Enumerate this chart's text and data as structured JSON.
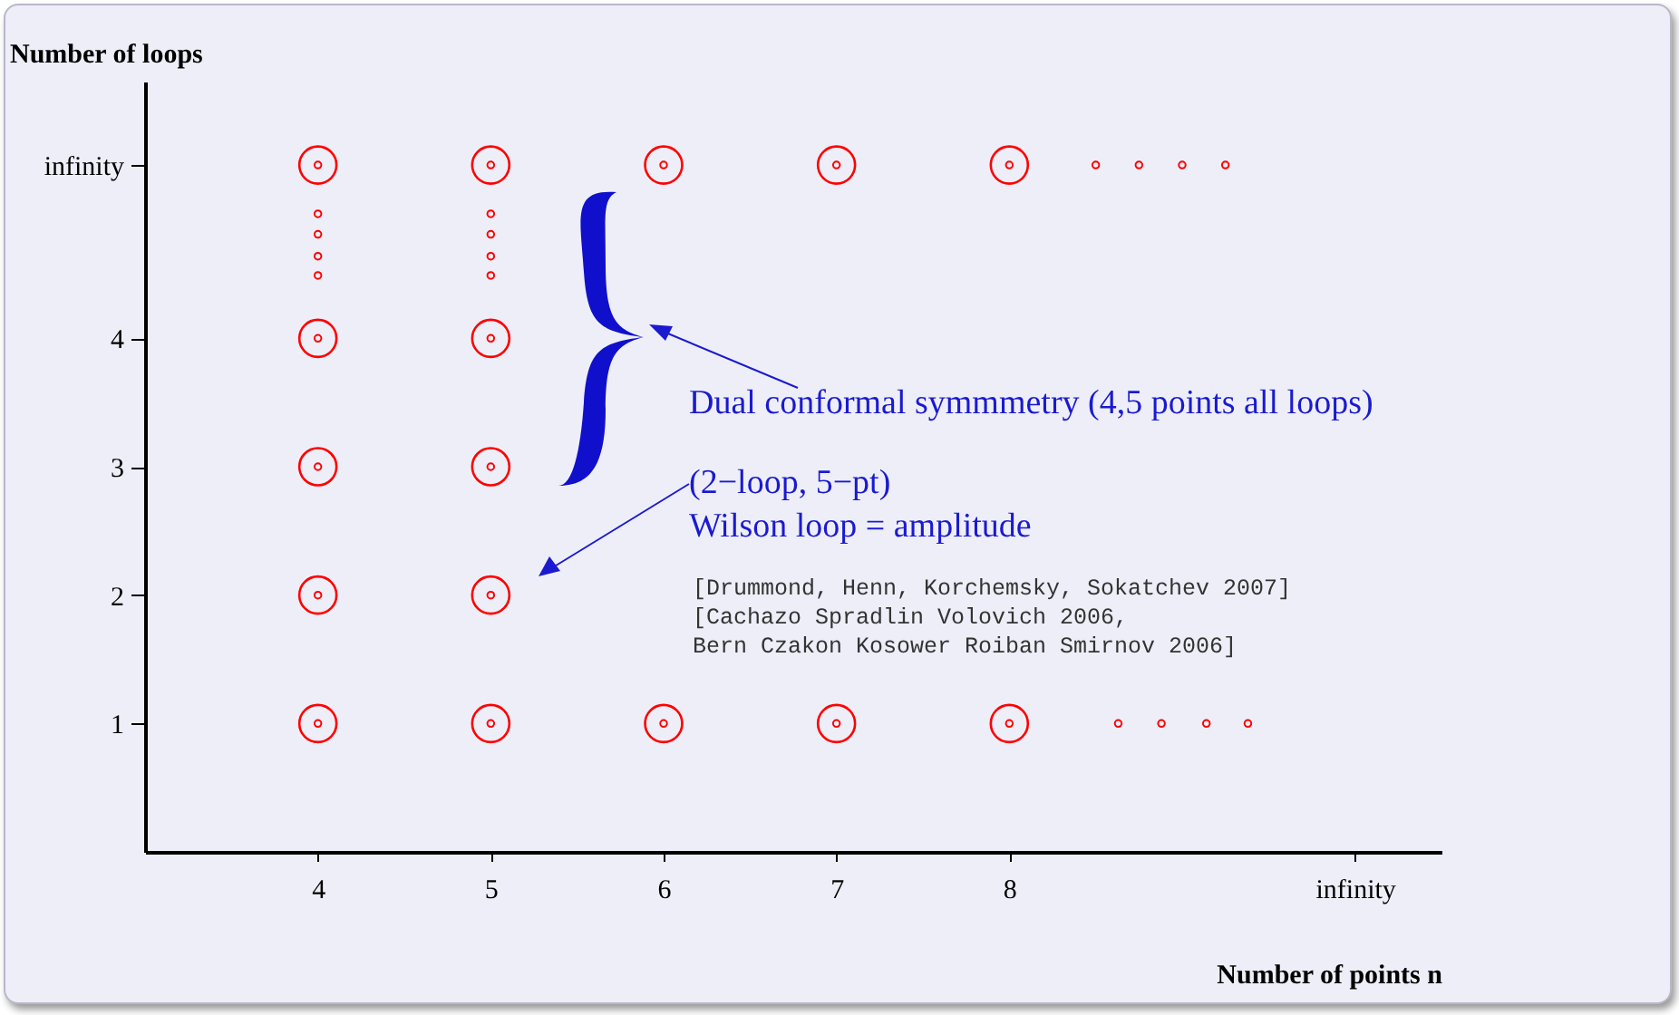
{
  "chart_data": {
    "type": "scatter",
    "xlabel": "Number of points n",
    "ylabel": "Number of loops",
    "marker": "circle",
    "grid": false,
    "xlim": [
      3,
      10.5
    ],
    "xticks": [
      4,
      5,
      6,
      7,
      8,
      {
        "value": 10,
        "label": "infinity"
      }
    ],
    "ylim": [
      0,
      6
    ],
    "yticks": [
      1,
      2,
      3,
      4,
      {
        "value": 5.35,
        "label": "infinity"
      }
    ],
    "series": [
      {
        "color": "#ff0000",
        "x": [
          4,
          4,
          4,
          4,
          4,
          5,
          5,
          5,
          5,
          5,
          6,
          6,
          7,
          7,
          8,
          8
        ],
        "values": [
          1,
          2,
          3,
          4,
          5.35,
          1,
          2,
          3,
          4,
          5.35,
          1,
          5.35,
          1,
          5.35,
          1,
          5.35
        ]
      },
      {
        "color": "#ff0000",
        "x": [
          4,
          4,
          4,
          4,
          4,
          5,
          5,
          5,
          5,
          5,
          6,
          6,
          7,
          7,
          8,
          8,
          4,
          4,
          4,
          4,
          5,
          5,
          5,
          5,
          8.5,
          8.75,
          9.0,
          9.25,
          8.63,
          8.88,
          9.14,
          9.38
        ],
        "values": [
          1,
          2,
          3,
          4,
          5.35,
          1,
          2,
          3,
          4,
          5.35,
          1,
          5.35,
          1,
          5.35,
          1,
          5.35,
          4.49,
          4.64,
          4.81,
          4.97,
          4.49,
          4.64,
          4.81,
          4.97,
          5.35,
          5.35,
          5.35,
          5.35,
          1,
          1,
          1,
          1
        ]
      }
    ],
    "annotations": [
      "Dual conformal symmmetry (4,5 points all loops)",
      "(2−loop, 5−pt)\nWilson loop = amplitude",
      "[Drummond, Henn, Korchemsky, Sokatchev 2007]\n[Cachazo Spradlin Volovich 2006,\nBern Czakon Kosower Roiban Smirnov 2006]"
    ]
  }
}
